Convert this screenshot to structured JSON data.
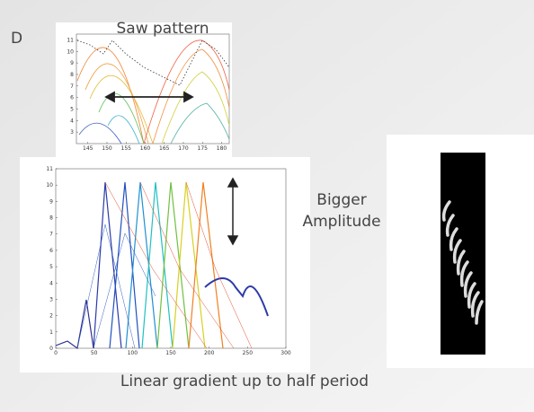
{
  "slide_label": "D",
  "top_title": "Saw pattern",
  "side_note": [
    "Bigger",
    "Amplitude"
  ],
  "caption": "Linear gradient up to half period",
  "upper_plot": {
    "xlim": [
      142,
      182
    ],
    "xticks": [
      145,
      150,
      155,
      160,
      165,
      170,
      175,
      180
    ],
    "ylim": [
      2,
      11.5
    ],
    "yticks": [
      3,
      4,
      5,
      6,
      7,
      8,
      9,
      10,
      11
    ]
  },
  "lower_plot": {
    "xlim": [
      0,
      300
    ],
    "xticks": [
      0,
      50,
      100,
      150,
      200,
      250,
      300
    ],
    "ylim": [
      0,
      11
    ],
    "yticks": [
      0,
      1,
      2,
      3,
      4,
      5,
      6,
      7,
      8,
      9,
      10,
      11
    ]
  }
}
